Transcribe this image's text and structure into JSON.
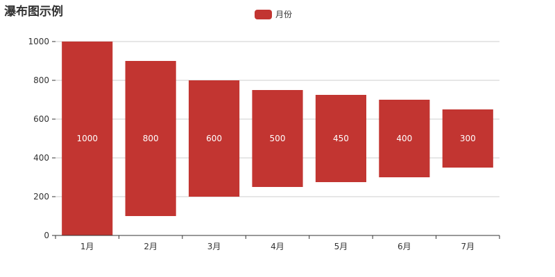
{
  "chart_data": {
    "type": "bar",
    "subtype": "waterfall",
    "title": "瀑布图示例",
    "categories": [
      "1月",
      "2月",
      "3月",
      "4月",
      "5月",
      "6月",
      "7月"
    ],
    "series": [
      {
        "name": "月份",
        "bases": [
          0,
          100,
          200,
          250,
          275,
          300,
          350
        ],
        "values": [
          1000,
          800,
          600,
          500,
          450,
          400,
          300
        ],
        "color": "#c23531"
      }
    ],
    "y_ticks": [
      0,
      200,
      400,
      600,
      800,
      1000
    ],
    "ylim": [
      0,
      1000
    ],
    "grid": true,
    "legend_position": "top-center",
    "colors": {
      "bar": "#c23531",
      "grid": "#cccccc",
      "axis": "#333333",
      "text": "#333333"
    }
  }
}
